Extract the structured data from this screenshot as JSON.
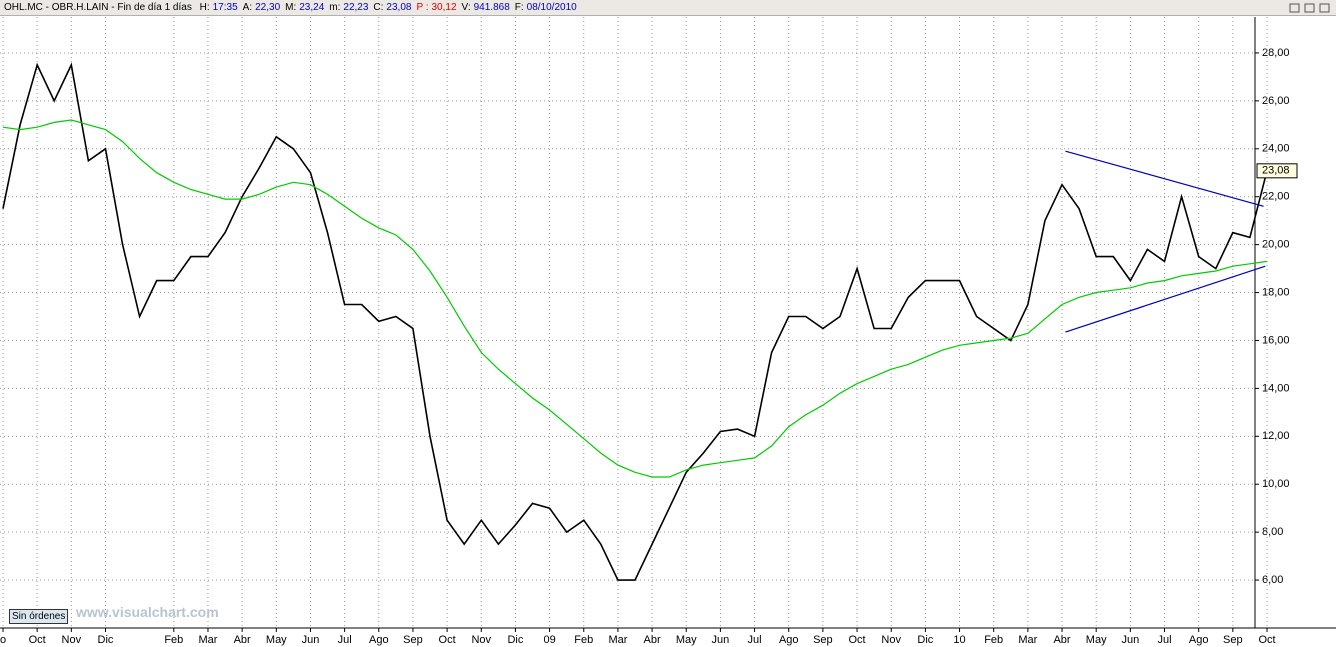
{
  "header": {
    "title": "OHL.MC - OBR.H.LAIN - Fin de día 1 días",
    "fields": [
      {
        "label": "H:",
        "value": "17:35"
      },
      {
        "label": "A:",
        "value": "22,30"
      },
      {
        "label": "M:",
        "value": "23,24"
      },
      {
        "label": "m:",
        "value": "22,23"
      },
      {
        "label": "C:",
        "value": "23,08"
      },
      {
        "label": "P :",
        "value": "30,12",
        "color": "#e00000"
      },
      {
        "label": "V:",
        "value": "941.868"
      },
      {
        "label": "F:",
        "value": "08/10/2010"
      }
    ]
  },
  "footer": {
    "button": "Sin órdenes",
    "watermark": "www.visualchart.com"
  },
  "chart_data": {
    "type": "line",
    "categories": [
      "o",
      null,
      "Oct",
      null,
      "Nov",
      null,
      "Dic",
      null,
      null,
      null,
      "Feb",
      null,
      "Mar",
      null,
      "Abr",
      null,
      "May",
      null,
      "Jun",
      null,
      "Jul",
      null,
      "Ago",
      null,
      "Sep",
      null,
      "Oct",
      null,
      "Nov",
      null,
      "Dic",
      null,
      "09",
      null,
      "Feb",
      null,
      "Mar",
      null,
      "Abr",
      null,
      "May",
      null,
      "Jun",
      null,
      "Jul",
      null,
      "Ago",
      null,
      "Sep",
      null,
      "Oct",
      null,
      "Nov",
      null,
      "Dic",
      null,
      "10",
      null,
      "Feb",
      null,
      "Mar",
      null,
      "Abr",
      null,
      "May",
      null,
      "Jun",
      null,
      "Jul",
      null,
      "Ago",
      null,
      "Sep",
      null,
      "Oct"
    ],
    "series": [
      {
        "name": "OHL.MC",
        "color": "#000000",
        "values": [
          21.5,
          25,
          27.5,
          26,
          27.5,
          23.5,
          24,
          20,
          17,
          18.5,
          18.5,
          19.5,
          19.5,
          20.5,
          22,
          23.2,
          24.5,
          24,
          23,
          20.5,
          17.5,
          17.5,
          16.8,
          17,
          16.5,
          12,
          8.5,
          7.5,
          8.5,
          7.5,
          8.3,
          9.2,
          9,
          8,
          8.5,
          7.5,
          6,
          6,
          7.5,
          9,
          10.5,
          11.3,
          12.2,
          12.3,
          12,
          15.5,
          17,
          17,
          16.5,
          17,
          19,
          16.5,
          16.5,
          17.8,
          18.5,
          18.5,
          18.5,
          17,
          16.5,
          16,
          17.5,
          21,
          22.5,
          21.5,
          19.5,
          19.5,
          18.5,
          19.8,
          19.3,
          22,
          19.5,
          19,
          20.5,
          20.3,
          23.08
        ],
        "value_labels": [
          null,
          null,
          null,
          null,
          null,
          null,
          null,
          null,
          null,
          null,
          null,
          null,
          null,
          null,
          null,
          null,
          null,
          null,
          null,
          null,
          null,
          null,
          null,
          null,
          null,
          null,
          null,
          null,
          null,
          null,
          null,
          null,
          null,
          null,
          null,
          null,
          null,
          null,
          null,
          null,
          null,
          null,
          null,
          null,
          null,
          null,
          null,
          null,
          null,
          null,
          null,
          null,
          null,
          null,
          null,
          null,
          null,
          null,
          null,
          null,
          null,
          null,
          null,
          null,
          null,
          null,
          null,
          null,
          null,
          null,
          null,
          null,
          null,
          null,
          "23,08"
        ]
      },
      {
        "name": "MA",
        "color": "#00cc00",
        "values": [
          24.9,
          24.8,
          24.9,
          25.1,
          25.2,
          25.0,
          24.8,
          24.3,
          23.6,
          23.0,
          22.6,
          22.3,
          22.1,
          21.9,
          21.9,
          22.1,
          22.4,
          22.6,
          22.5,
          22.1,
          21.6,
          21.1,
          20.7,
          20.4,
          19.8,
          18.9,
          17.8,
          16.6,
          15.5,
          14.8,
          14.2,
          13.6,
          13.1,
          12.5,
          11.9,
          11.3,
          10.8,
          10.5,
          10.3,
          10.3,
          10.6,
          10.8,
          10.9,
          11.0,
          11.1,
          11.6,
          12.4,
          12.9,
          13.3,
          13.8,
          14.2,
          14.5,
          14.8,
          15.0,
          15.3,
          15.6,
          15.8,
          15.9,
          16.0,
          16.1,
          16.3,
          16.9,
          17.5,
          17.8,
          18.0,
          18.1,
          18.2,
          18.4,
          18.5,
          18.7,
          18.8,
          18.9,
          19.1,
          19.2,
          19.3
        ]
      }
    ],
    "trendlines": [
      {
        "color": "#0000c0",
        "from": [
          62.2,
          23.9
        ],
        "to": [
          73.8,
          21.6
        ]
      },
      {
        "color": "#0000c0",
        "from": [
          62.2,
          16.35
        ],
        "to": [
          73.9,
          19.1
        ]
      }
    ],
    "ylim": [
      4,
      29.5
    ],
    "yticks": [
      {
        "value": 6,
        "label": "6,00"
      },
      {
        "value": 8,
        "label": "8,00"
      },
      {
        "value": 10,
        "label": "10,00"
      },
      {
        "value": 12,
        "label": "12,00"
      },
      {
        "value": 14,
        "label": "14,00"
      },
      {
        "value": 16,
        "label": "16,00"
      },
      {
        "value": 18,
        "label": "18,00"
      },
      {
        "value": 20,
        "label": "20,00"
      },
      {
        "value": 22,
        "label": "22,00"
      },
      {
        "value": 24,
        "label": "24,00"
      },
      {
        "value": 26,
        "label": "26,00"
      },
      {
        "value": 28,
        "label": "28,00"
      }
    ],
    "grid": true
  }
}
